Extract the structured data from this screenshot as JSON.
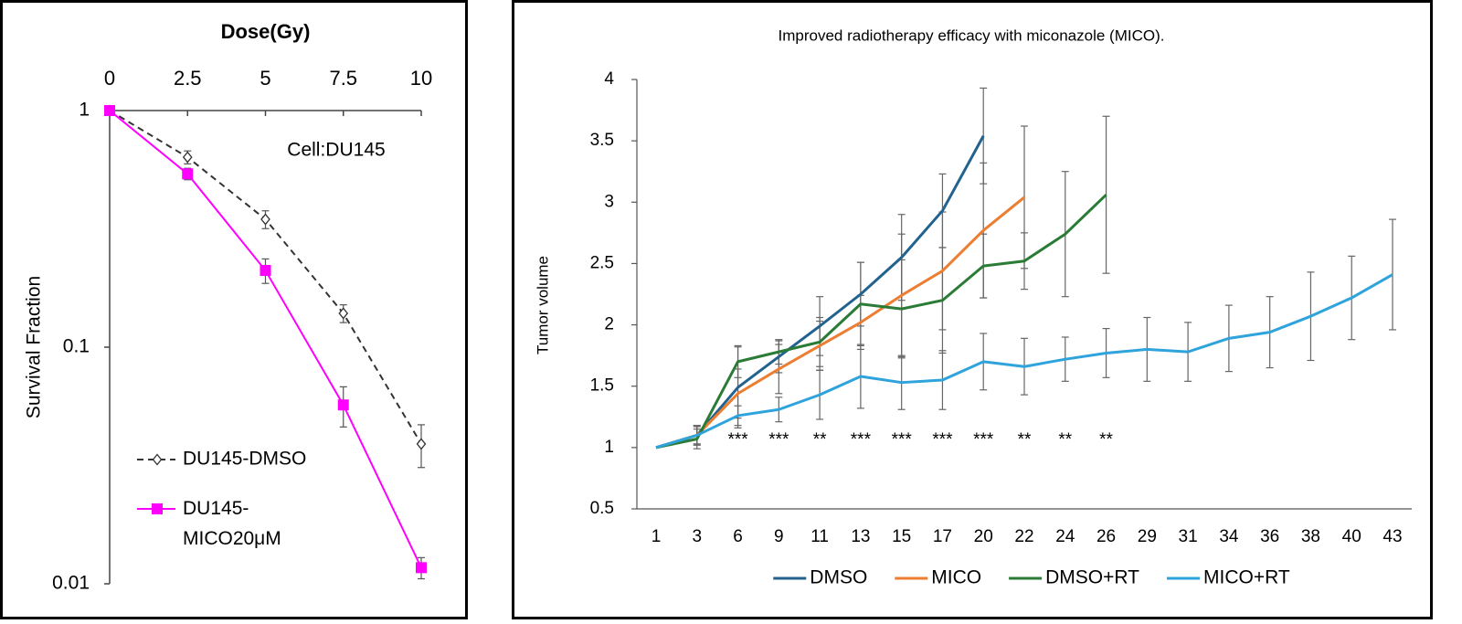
{
  "chart_data": [
    {
      "type": "line",
      "xlabel": "Dose(Gy)",
      "ylabel": "Survival Fraction",
      "annotation": "Cell:DU145",
      "x": [
        0,
        2.5,
        5,
        7.5,
        10
      ],
      "xlim": [
        0,
        10
      ],
      "xticks": [
        0,
        2.5,
        5,
        7.5,
        10
      ],
      "xaxis_position": "top",
      "ylim": [
        0.01,
        1
      ],
      "yticks": [
        1,
        0.1,
        0.01
      ],
      "log_y": true,
      "legend": "lower left",
      "series": [
        {
          "name": "DU145-DMSO",
          "color": "#333333",
          "linestyle": "dashed",
          "marker": "diamond",
          "values": [
            1,
            0.635,
            0.347,
            0.139,
            0.039
          ],
          "errors": [
            null,
            0.04,
            0.03,
            0.012,
            0.008
          ]
        },
        {
          "name": "DU145-MICO20μM",
          "color": "#ff00ff",
          "linestyle": "solid",
          "marker": "square",
          "values": [
            1,
            0.54,
            0.211,
            0.057,
            0.0117
          ],
          "errors": [
            null,
            0.03,
            0.025,
            0.011,
            0.0012
          ]
        }
      ]
    },
    {
      "type": "line",
      "title": "Improved radiotherapy efficacy with miconazole (MICO).",
      "ylabel": "Tumor volume",
      "categories": [
        "1",
        "3",
        "6",
        "9",
        "11",
        "13",
        "15",
        "17",
        "20",
        "22",
        "24",
        "26",
        "29",
        "31",
        "34",
        "36",
        "38",
        "40",
        "43"
      ],
      "ylim": [
        0.5,
        4
      ],
      "yticks": [
        0.5,
        1,
        1.5,
        2,
        2.5,
        3,
        3.5,
        4
      ],
      "legend": "bottom",
      "annotations": [
        {
          "x": "6",
          "text": "***"
        },
        {
          "x": "9",
          "text": "***"
        },
        {
          "x": "11",
          "text": "**"
        },
        {
          "x": "13",
          "text": "***"
        },
        {
          "x": "15",
          "text": "***"
        },
        {
          "x": "17",
          "text": "***"
        },
        {
          "x": "20",
          "text": "***"
        },
        {
          "x": "22",
          "text": "**"
        },
        {
          "x": "24",
          "text": "**"
        },
        {
          "x": "26",
          "text": "**"
        }
      ],
      "series": [
        {
          "name": "DMSO",
          "color": "#22628f",
          "values": [
            1,
            1.1,
            1.49,
            1.74,
            1.99,
            2.25,
            2.55,
            2.93,
            3.54,
            null,
            null,
            null,
            null,
            null,
            null,
            null,
            null,
            null,
            null
          ],
          "errors": [
            null,
            0.08,
            0.33,
            0.13,
            0.24,
            0.26,
            0.35,
            0.3,
            0.39,
            null,
            null,
            null,
            null,
            null,
            null,
            null,
            null,
            null,
            null
          ]
        },
        {
          "name": "MICO",
          "color": "#ed7d31",
          "values": [
            1,
            1.1,
            1.44,
            1.64,
            1.83,
            2.02,
            2.24,
            2.44,
            2.77,
            3.04,
            null,
            null,
            null,
            null,
            null,
            null,
            null,
            null,
            null
          ],
          "errors": [
            null,
            0.07,
            0.2,
            0.2,
            0.2,
            0.22,
            0.5,
            0.48,
            0.55,
            0.58,
            null,
            null,
            null,
            null,
            null,
            null,
            null,
            null,
            null
          ]
        },
        {
          "name": "DMSO+RT",
          "color": "#2a7b35",
          "values": [
            1,
            1.07,
            1.7,
            1.78,
            1.86,
            2.17,
            2.13,
            2.2,
            2.48,
            2.52,
            2.74,
            3.06,
            null,
            null,
            null,
            null,
            null,
            null,
            null
          ],
          "errors": [
            null,
            0.08,
            0.13,
            0.1,
            0.2,
            0.34,
            0.4,
            0.43,
            0.26,
            0.23,
            0.51,
            0.64,
            null,
            null,
            null,
            null,
            null,
            null,
            null
          ]
        },
        {
          "name": "MICO+RT",
          "color": "#2ea3dc",
          "values": [
            1,
            1.1,
            1.26,
            1.31,
            1.43,
            1.58,
            1.53,
            1.55,
            1.7,
            1.66,
            1.72,
            1.77,
            1.8,
            1.78,
            1.89,
            1.94,
            2.07,
            2.22,
            2.41
          ],
          "errors": [
            null,
            0.08,
            0.08,
            0.1,
            0.2,
            0.26,
            0.22,
            0.24,
            0.23,
            0.23,
            0.18,
            0.2,
            0.26,
            0.24,
            0.27,
            0.29,
            0.36,
            0.34,
            0.45
          ]
        }
      ]
    }
  ]
}
